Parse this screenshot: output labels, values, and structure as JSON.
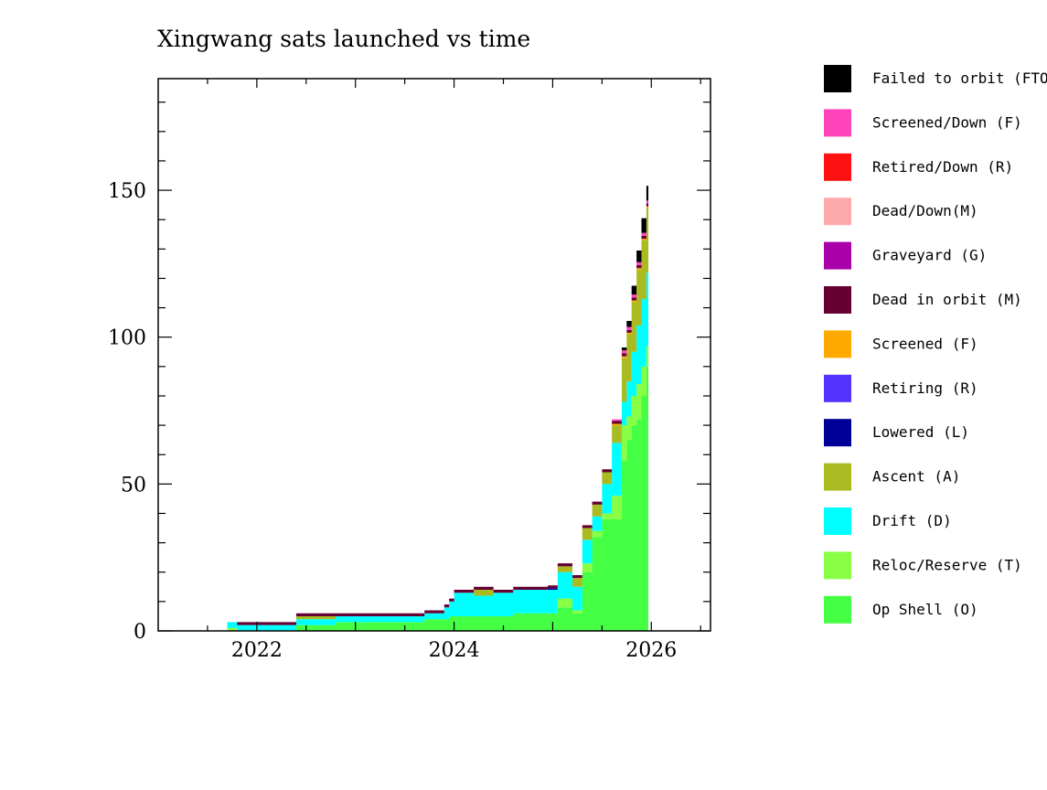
{
  "chart_data": {
    "type": "area",
    "title": "Xingwang sats launched vs time",
    "xlabel": "",
    "ylabel": "",
    "xlim": [
      2021.0,
      2026.6
    ],
    "ylim": [
      0,
      188
    ],
    "x_ticks": [
      2022,
      2024,
      2026
    ],
    "x_tick_labels": [
      "2022",
      "2024",
      "2026"
    ],
    "y_ticks": [
      0,
      50,
      100,
      150
    ],
    "y_tick_labels": [
      "0",
      "50",
      "100",
      "150"
    ],
    "grid": false,
    "stacked": true,
    "legend_position": "right",
    "x": [
      2021.6,
      2021.7,
      2021.8,
      2022.0,
      2022.2,
      2022.4,
      2022.5,
      2022.8,
      2023.2,
      2023.5,
      2023.7,
      2023.9,
      2023.95,
      2024.0,
      2024.2,
      2024.4,
      2024.6,
      2024.8,
      2024.95,
      2025.05,
      2025.2,
      2025.3,
      2025.4,
      2025.5,
      2025.6,
      2025.7,
      2025.75,
      2025.8,
      2025.85,
      2025.9,
      2025.95
    ],
    "series": [
      {
        "name": "Failed to orbit (FTO)",
        "color": "#000000",
        "values": [
          0,
          0,
          0,
          0,
          0,
          0,
          0,
          0,
          0,
          0,
          0,
          0,
          0,
          0,
          0,
          0,
          0,
          0,
          0,
          0,
          0,
          0,
          0,
          0,
          0,
          1,
          2,
          3,
          4,
          5,
          5
        ]
      },
      {
        "name": "Screened/Down (F)",
        "color": "#ff44bb",
        "values": [
          0,
          0,
          0,
          0,
          0,
          0,
          0,
          0,
          0,
          0,
          0,
          0,
          0,
          0,
          0,
          0,
          0,
          0,
          0,
          0,
          0,
          0,
          0,
          0,
          0.5,
          1,
          1,
          1,
          1,
          1,
          1
        ]
      },
      {
        "name": "Retired/Down (R)",
        "color": "#ff1111",
        "values": [
          0,
          0,
          0,
          0,
          0,
          0,
          0,
          0,
          0,
          0,
          0,
          0,
          0,
          0,
          0,
          0,
          0,
          0,
          0,
          0,
          0,
          0,
          0,
          0,
          0,
          0,
          0,
          0,
          0,
          0,
          0
        ]
      },
      {
        "name": "Dead/Down(M)",
        "color": "#ffaaaa",
        "values": [
          0,
          0,
          0,
          0,
          0,
          0,
          0,
          0,
          0,
          0,
          0,
          0,
          0,
          0,
          0,
          0,
          0,
          0,
          0,
          0,
          0,
          0,
          0,
          0,
          0,
          0,
          0,
          0,
          0,
          0,
          0
        ]
      },
      {
        "name": "Graveyard (G)",
        "color": "#aa00aa",
        "values": [
          0,
          0,
          0,
          0,
          0,
          0,
          0,
          0,
          0,
          0,
          0,
          0,
          0,
          0,
          0,
          0,
          0,
          0,
          0,
          0,
          0,
          0,
          0,
          0,
          0,
          0,
          0,
          0,
          0,
          0,
          0
        ]
      },
      {
        "name": "Dead in orbit (M)",
        "color": "#660033",
        "values": [
          0,
          0,
          1,
          1,
          1,
          1,
          1,
          1,
          1,
          1,
          1,
          1,
          1,
          1,
          1,
          1,
          1,
          1,
          1,
          1,
          1,
          1,
          1,
          1,
          1,
          1,
          1,
          1,
          1,
          1,
          1
        ]
      },
      {
        "name": "Screened (F)",
        "color": "#ffaa00",
        "values": [
          0,
          0,
          0,
          0,
          0,
          0,
          0,
          0,
          0,
          0,
          0,
          0,
          0,
          0,
          0,
          0,
          0,
          0,
          0,
          0,
          0,
          0,
          0,
          0,
          0.5,
          0.5,
          0.5,
          0.5,
          0.5,
          0.5,
          0.5
        ]
      },
      {
        "name": "Retiring (R)",
        "color": "#5533ff",
        "values": [
          0,
          0,
          0,
          0,
          0,
          0,
          0,
          0,
          0,
          0,
          0,
          0,
          0,
          0,
          0,
          0,
          0,
          0,
          0,
          0,
          0,
          0,
          0,
          0,
          0,
          0,
          0,
          0,
          0,
          0,
          0
        ]
      },
      {
        "name": "Lowered (L)",
        "color": "#000099",
        "values": [
          0,
          0,
          0,
          0,
          0,
          0,
          0,
          0,
          0,
          0,
          0,
          0,
          0,
          0,
          0,
          0,
          0,
          0,
          0.5,
          0,
          0,
          0,
          0,
          0,
          0,
          0,
          0,
          0,
          0,
          0,
          0
        ]
      },
      {
        "name": "Ascent (A)",
        "color": "#aabb22",
        "values": [
          0,
          0,
          0,
          0,
          0,
          1,
          1,
          0,
          0,
          0,
          0,
          0,
          0,
          0,
          2,
          0,
          0,
          0,
          0,
          2,
          3,
          4,
          4,
          4,
          6,
          15,
          16,
          17,
          19,
          20,
          22
        ]
      },
      {
        "name": "Drift (D)",
        "color": "#00ffff",
        "values": [
          0,
          2,
          2,
          2,
          2,
          2,
          2,
          2,
          2,
          2,
          2,
          4,
          5,
          8,
          7,
          8,
          8,
          8,
          8,
          9,
          8,
          8,
          5,
          10,
          18,
          8,
          12,
          15,
          20,
          23,
          25
        ]
      },
      {
        "name": "Reloc/Reserve (T)",
        "color": "#88ff44",
        "values": [
          0,
          1,
          0,
          0,
          0,
          0,
          0,
          0,
          0,
          0,
          0,
          0,
          0,
          0,
          0,
          0,
          0,
          0,
          0,
          3,
          1,
          3,
          2,
          2,
          8,
          12,
          8,
          10,
          12,
          10,
          7
        ]
      },
      {
        "name": "Op Shell (O)",
        "color": "#44ff44",
        "values": [
          0,
          0,
          0,
          0,
          0,
          2,
          2,
          3,
          3,
          3,
          4,
          4,
          5,
          5,
          5,
          5,
          6,
          6,
          6,
          8,
          6,
          20,
          32,
          38,
          38,
          58,
          65,
          70,
          72,
          80,
          90
        ]
      }
    ]
  }
}
